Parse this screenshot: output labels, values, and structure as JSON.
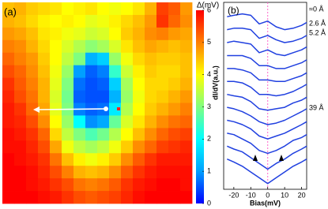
{
  "chart_data": [
    {
      "type": "heatmap",
      "panel_label": "(a)",
      "zlabel": "Δ(mV)",
      "zlim": [
        0,
        6
      ],
      "zticks": [
        0,
        1,
        2,
        3,
        4,
        5,
        6
      ],
      "colormap": [
        "#0000ff",
        "#00a0ff",
        "#00ffff",
        "#80ff80",
        "#ffff00",
        "#ff8000",
        "#ff0000"
      ],
      "z": [
        [
          4.5,
          4.6,
          4.4,
          4.3,
          4.2,
          4.0,
          4.1,
          4.2,
          4.0,
          3.9,
          4.0,
          4.2,
          4.6,
          5.5,
          5.3,
          4.8
        ],
        [
          4.6,
          4.5,
          4.3,
          4.1,
          4.0,
          4.1,
          4.0,
          3.8,
          3.9,
          4.1,
          4.3,
          4.5,
          4.8,
          5.6,
          5.2,
          4.9
        ],
        [
          4.8,
          4.7,
          4.5,
          4.2,
          4.1,
          3.9,
          3.8,
          3.6,
          3.7,
          4.0,
          4.4,
          4.6,
          4.9,
          5.0,
          4.8,
          4.7
        ],
        [
          5.0,
          4.9,
          4.6,
          4.3,
          4.0,
          3.7,
          3.4,
          3.1,
          3.3,
          3.7,
          4.2,
          4.5,
          4.7,
          4.6,
          4.5,
          4.6
        ],
        [
          5.2,
          5.0,
          4.8,
          4.4,
          4.0,
          3.5,
          3.0,
          1.2,
          1.5,
          3.2,
          3.9,
          4.3,
          4.5,
          4.4,
          4.4,
          4.5
        ],
        [
          5.4,
          5.2,
          4.9,
          4.5,
          3.9,
          3.2,
          1.0,
          0.6,
          0.8,
          2.4,
          3.6,
          4.1,
          4.4,
          4.3,
          4.3,
          4.5
        ],
        [
          5.6,
          5.3,
          5.0,
          4.6,
          3.8,
          3.0,
          0.7,
          0.5,
          0.6,
          1.5,
          3.3,
          4.0,
          4.3,
          4.3,
          4.4,
          4.6
        ],
        [
          5.7,
          5.4,
          5.1,
          4.6,
          3.7,
          2.9,
          0.6,
          0.5,
          0.5,
          1.2,
          3.2,
          3.9,
          4.3,
          4.4,
          4.6,
          4.8
        ],
        [
          5.8,
          5.6,
          5.2,
          4.7,
          3.8,
          3.0,
          0.8,
          0.6,
          0.7,
          1.8,
          3.4,
          4.0,
          4.4,
          4.6,
          4.8,
          5.0
        ],
        [
          5.8,
          5.7,
          5.4,
          4.9,
          4.0,
          3.2,
          2.0,
          0.9,
          1.1,
          2.8,
          3.7,
          4.2,
          4.6,
          4.9,
          5.1,
          5.2
        ],
        [
          5.9,
          5.8,
          5.6,
          5.2,
          4.3,
          3.5,
          3.0,
          2.6,
          2.9,
          3.4,
          4.0,
          4.5,
          4.9,
          5.2,
          5.4,
          5.5
        ],
        [
          5.9,
          5.9,
          5.7,
          5.4,
          4.7,
          3.9,
          3.5,
          3.3,
          3.5,
          3.9,
          4.4,
          4.9,
          5.2,
          5.5,
          5.6,
          5.7
        ],
        [
          6.0,
          5.9,
          5.8,
          5.6,
          5.1,
          4.5,
          4.1,
          3.9,
          4.1,
          4.4,
          4.9,
          5.3,
          5.6,
          5.8,
          5.8,
          5.8
        ],
        [
          6.0,
          6.0,
          5.9,
          5.7,
          5.4,
          5.0,
          4.6,
          4.5,
          4.6,
          4.9,
          5.3,
          5.6,
          5.8,
          5.9,
          5.9,
          5.9
        ],
        [
          6.0,
          6.0,
          5.9,
          5.8,
          5.6,
          5.4,
          5.1,
          5.0,
          5.1,
          5.3,
          5.6,
          5.8,
          5.9,
          6.0,
          6.0,
          5.9
        ],
        [
          6.0,
          6.0,
          6.0,
          5.9,
          5.8,
          5.6,
          5.4,
          5.3,
          5.4,
          5.5,
          5.7,
          5.9,
          6.0,
          6.0,
          6.0,
          6.0
        ]
      ]
    },
    {
      "type": "line",
      "panel_label": "(b)",
      "xlabel": "Bias(mV)",
      "ylabel": "dI/dV(a.u.)",
      "xlim": [
        -26,
        23
      ],
      "xticks": [
        -20,
        -10,
        0,
        10,
        20
      ],
      "ylim": [
        0,
        13
      ],
      "vline": 0,
      "vline_color": "#ff66cc",
      "x": [
        -24,
        -20,
        -15,
        -10,
        -5,
        0,
        5,
        10,
        15,
        20,
        23
      ],
      "annotations": [
        "≈0 Å",
        "2.6 Å",
        "5.2 Å",
        "39 Å"
      ],
      "series": [
        {
          "color": "#2040e0",
          "values": [
            12,
            12.1,
            12.2,
            12.1,
            11.5,
            11.7,
            11.3,
            11.1,
            11.2,
            11.4,
            11.6
          ]
        },
        {
          "color": "#2040e0",
          "values": [
            11.1,
            11.2,
            11.2,
            11.1,
            10.5,
            10.7,
            10.4,
            10.2,
            10.3,
            10.5,
            10.7
          ]
        },
        {
          "color": "#2040e0",
          "values": [
            10.2,
            10.3,
            10.2,
            10.1,
            9.5,
            9.7,
            9.4,
            9.3,
            9.5,
            9.7,
            9.9
          ]
        },
        {
          "color": "#2040e0",
          "values": [
            9.3,
            9.3,
            9.3,
            9.1,
            8.6,
            8.6,
            8.4,
            8.4,
            8.6,
            8.8,
            9.0
          ]
        },
        {
          "color": "#2040e0",
          "values": [
            8.4,
            8.4,
            8.3,
            8.1,
            7.6,
            7.6,
            7.5,
            7.5,
            7.7,
            7.9,
            8.1
          ]
        },
        {
          "color": "#2040e0",
          "values": [
            7.5,
            7.5,
            7.4,
            7.1,
            6.6,
            6.6,
            6.5,
            6.6,
            6.8,
            7.1,
            7.3
          ]
        },
        {
          "color": "#2040e0",
          "values": [
            6.6,
            6.5,
            6.4,
            6.1,
            5.6,
            5.5,
            5.6,
            5.7,
            6.0,
            6.2,
            6.4
          ]
        },
        {
          "color": "#2040e0",
          "values": [
            5.7,
            5.6,
            5.4,
            5.1,
            4.7,
            4.5,
            4.6,
            4.8,
            5.1,
            5.4,
            5.6
          ]
        },
        {
          "color": "#2040e0",
          "values": [
            4.8,
            4.7,
            4.5,
            4.2,
            3.7,
            3.5,
            3.7,
            3.9,
            4.2,
            4.5,
            4.7
          ]
        },
        {
          "color": "#2040e0",
          "values": [
            3.9,
            3.8,
            3.5,
            3.2,
            2.7,
            2.5,
            2.7,
            3.0,
            3.4,
            3.6,
            3.8
          ]
        },
        {
          "color": "#2040e0",
          "values": [
            3.0,
            2.8,
            2.6,
            2.2,
            1.8,
            1.4,
            1.8,
            2.1,
            2.5,
            2.8,
            3.0
          ]
        },
        {
          "color": "#2040e0",
          "values": [
            2.1,
            1.9,
            1.6,
            1.2,
            0.8,
            0.4,
            0.8,
            1.2,
            1.6,
            1.9,
            2.1
          ]
        }
      ]
    }
  ]
}
